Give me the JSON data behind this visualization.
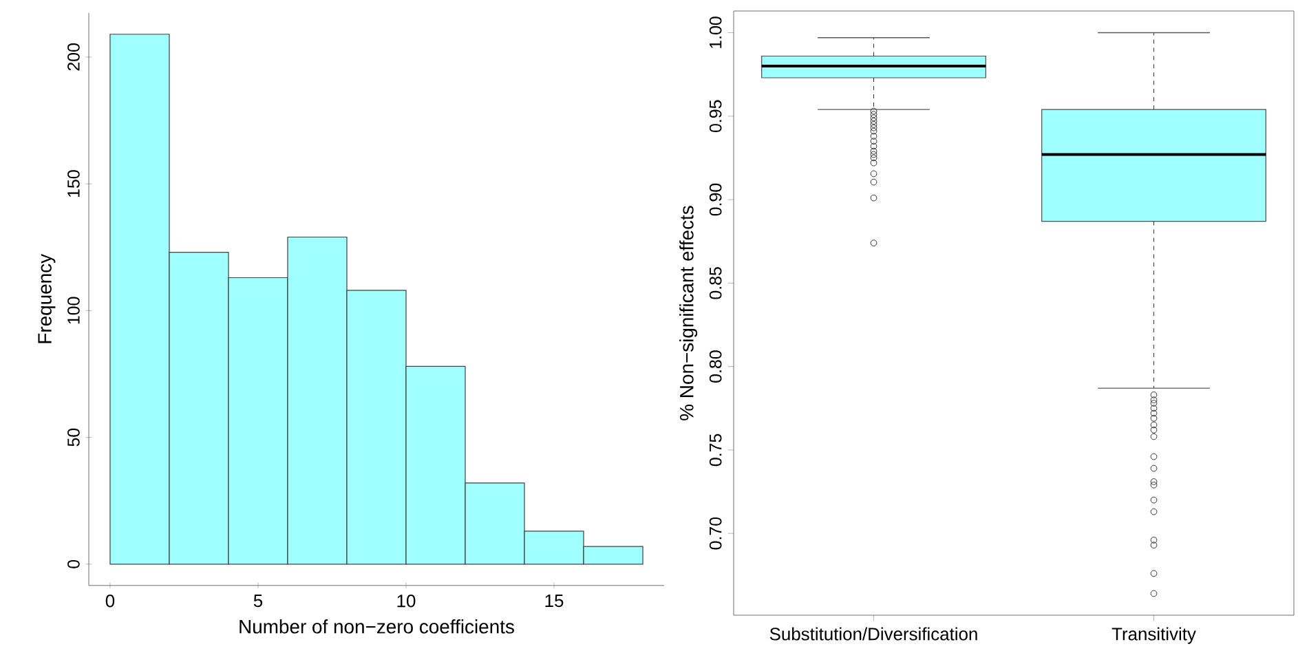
{
  "chart_data": [
    {
      "type": "histogram",
      "xlabel": "Number of non−zero coefficients",
      "ylabel": "Frequency",
      "bins": [
        0,
        2,
        4,
        6,
        8,
        10,
        12,
        14,
        16,
        18
      ],
      "values": [
        209,
        123,
        113,
        129,
        108,
        78,
        32,
        13,
        7
      ],
      "color": "#a0ffff",
      "xlim": [
        -0.72,
        18.72
      ],
      "ylim": [
        -8.4,
        217.4
      ],
      "xticks": [
        0,
        5,
        10,
        15
      ],
      "yticks": [
        0,
        50,
        100,
        150,
        200
      ]
    },
    {
      "type": "box",
      "ylabel": "% Non−significant effects",
      "categories": [
        "Substitution/Diversification",
        "Transitivity"
      ],
      "color": "#a0ffff",
      "ylim": [
        0.651,
        1.013
      ],
      "yticks": [
        {
          "value": 0.7,
          "label": "0.70"
        },
        {
          "value": 0.75,
          "label": "0.75"
        },
        {
          "value": 0.8,
          "label": "0.80"
        },
        {
          "value": 0.85,
          "label": "0.85"
        },
        {
          "value": 0.9,
          "label": "0.90"
        },
        {
          "value": 0.95,
          "label": "0.95"
        },
        {
          "value": 1.0,
          "label": "1.00"
        }
      ],
      "boxes": [
        {
          "low": 0.954,
          "q1": 0.973,
          "median": 0.98,
          "q3": 0.986,
          "high": 0.997,
          "outliers": [
            0.953,
            0.951,
            0.949,
            0.947,
            0.945,
            0.943,
            0.941,
            0.938,
            0.935,
            0.932,
            0.929,
            0.927,
            0.925,
            0.922,
            0.9155,
            0.9105,
            0.901,
            0.874
          ]
        },
        {
          "low": 0.787,
          "q1": 0.887,
          "median": 0.927,
          "q3": 0.954,
          "high": 1.0,
          "outliers": [
            0.783,
            0.78,
            0.778,
            0.775,
            0.772,
            0.769,
            0.765,
            0.762,
            0.758,
            0.746,
            0.739,
            0.731,
            0.729,
            0.72,
            0.713,
            0.696,
            0.693,
            0.676,
            0.664
          ]
        }
      ]
    }
  ]
}
